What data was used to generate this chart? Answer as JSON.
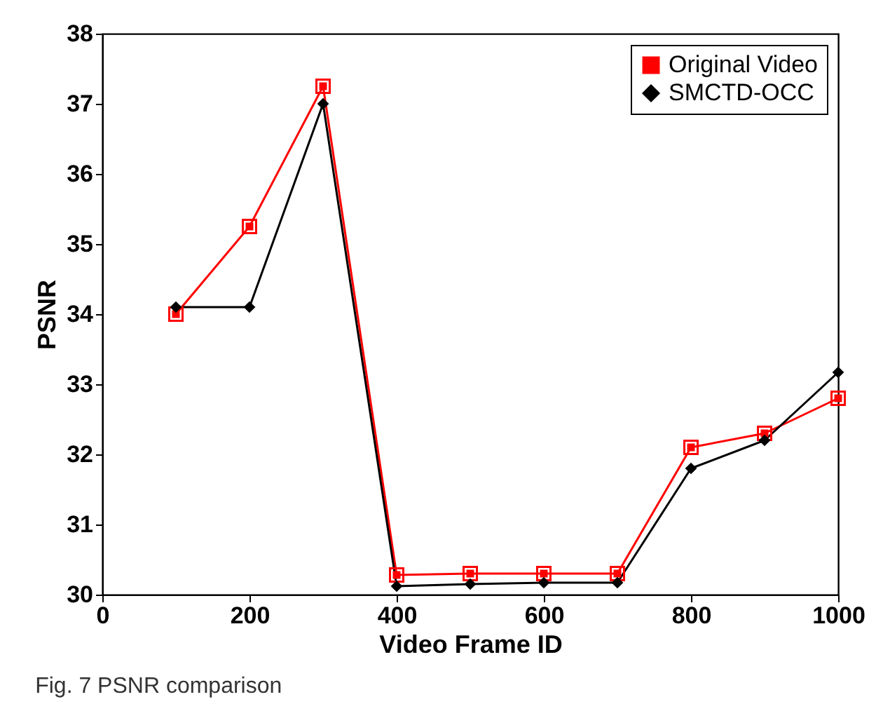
{
  "chart_data": {
    "type": "line",
    "xlabel": "Video Frame ID",
    "ylabel": "PSNR",
    "x": [
      100,
      200,
      300,
      400,
      500,
      600,
      700,
      800,
      900,
      1000
    ],
    "series": [
      {
        "name": "Original Video",
        "color": "#ff0000",
        "marker": "square",
        "values": [
          34.0,
          35.25,
          37.25,
          30.28,
          30.3,
          30.3,
          30.3,
          32.1,
          32.3,
          32.8
        ]
      },
      {
        "name": "SMCTD-OCC",
        "color": "#000000",
        "marker": "diamond",
        "values": [
          34.1,
          34.1,
          37.0,
          30.12,
          30.15,
          30.17,
          30.17,
          31.8,
          32.2,
          33.17
        ]
      }
    ],
    "xlim": [
      0,
      1000
    ],
    "xticks": [
      0,
      200,
      400,
      600,
      800,
      1000
    ],
    "ylim": [
      30,
      38
    ],
    "yticks": [
      30,
      31,
      32,
      33,
      34,
      35,
      36,
      37,
      38
    ],
    "grid": false,
    "legend": "top right",
    "line_style": "solid",
    "annotations": [
      "Fig. 7 PSNR comparison"
    ]
  }
}
